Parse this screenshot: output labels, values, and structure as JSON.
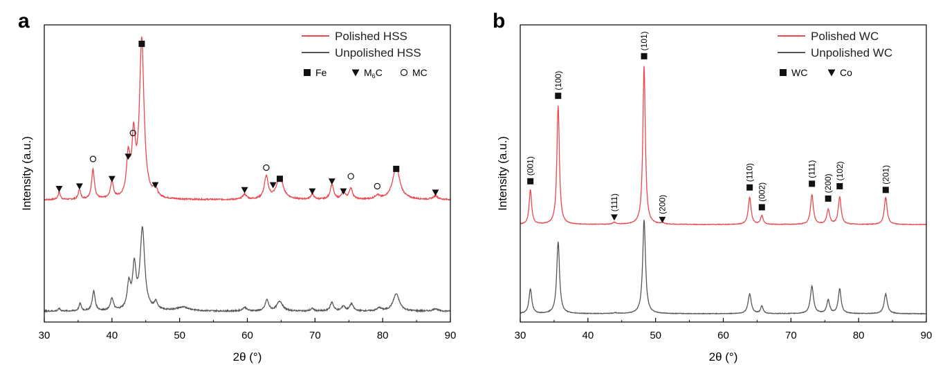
{
  "chart_data": [
    {
      "panel_label": "a",
      "type": "line",
      "xlabel": "2θ (°)",
      "ylabel": "Intensity (a.u.)",
      "xlim": [
        30,
        90
      ],
      "xticks": [
        "30",
        "40",
        "50",
        "60",
        "70",
        "80",
        "90"
      ],
      "ylim": [
        0,
        100
      ],
      "legend_position": "top-right",
      "series": [
        {
          "name": "Polished HSS",
          "color": "#e8484e",
          "offset": 45,
          "baseline": 1.0,
          "peaks": [
            [
              32.2,
              3.0,
              0.2
            ],
            [
              35.2,
              4.0,
              0.2
            ],
            [
              37.2,
              12.0,
              0.25
            ],
            [
              40.0,
              7.0,
              0.25
            ],
            [
              42.4,
              16.0,
              0.3
            ],
            [
              43.2,
              23.0,
              0.3
            ],
            [
              44.4,
              64.0,
              0.4
            ],
            [
              46.4,
              4.0,
              0.3
            ],
            [
              59.6,
              2.0,
              0.35
            ],
            [
              62.8,
              9.0,
              0.35
            ],
            [
              64.8,
              9.0,
              0.6
            ],
            [
              69.6,
              2.0,
              0.3
            ],
            [
              72.5,
              6.0,
              0.3
            ],
            [
              74.2,
              3.0,
              0.3
            ],
            [
              75.3,
              4.5,
              0.3
            ],
            [
              79.2,
              1.5,
              0.4
            ],
            [
              82.0,
              13.0,
              0.65
            ],
            [
              87.8,
              1.5,
              0.4
            ]
          ]
        },
        {
          "name": "Unpolished HSS",
          "color": "#555555",
          "offset": 0,
          "baseline": 1.0,
          "peaks": [
            [
              32.2,
              1.0,
              0.2
            ],
            [
              35.3,
              3.0,
              0.2
            ],
            [
              37.3,
              8.0,
              0.25
            ],
            [
              40.0,
              5.0,
              0.25
            ],
            [
              42.5,
              10.0,
              0.3
            ],
            [
              43.3,
              17.0,
              0.3
            ],
            [
              44.5,
              33.0,
              0.4
            ],
            [
              46.5,
              3.0,
              0.3
            ],
            [
              50.5,
              1.5,
              1.2
            ],
            [
              59.6,
              1.5,
              0.35
            ],
            [
              62.9,
              4.5,
              0.3
            ],
            [
              64.8,
              4.0,
              0.5
            ],
            [
              69.6,
              1.0,
              0.3
            ],
            [
              72.5,
              3.5,
              0.3
            ],
            [
              74.2,
              2.0,
              0.3
            ],
            [
              75.4,
              3.0,
              0.3
            ],
            [
              79.5,
              1.2,
              0.4
            ],
            [
              82.0,
              7.0,
              0.55
            ],
            [
              87.8,
              1.0,
              0.4
            ]
          ]
        }
      ],
      "annotations": [
        {
          "marker": "square",
          "x": 44.4,
          "y": 109.0
        },
        {
          "marker": "square",
          "x": 64.8,
          "y": 54.5
        },
        {
          "marker": "square",
          "x": 82.0,
          "y": 58.5
        },
        {
          "marker": "triangle",
          "x": 32.2,
          "y": 50.5
        },
        {
          "marker": "triangle",
          "x": 35.2,
          "y": 51.5
        },
        {
          "marker": "triangle",
          "x": 40.0,
          "y": 54.5
        },
        {
          "marker": "triangle",
          "x": 42.4,
          "y": 63.5
        },
        {
          "marker": "triangle",
          "x": 46.4,
          "y": 52.0
        },
        {
          "marker": "triangle",
          "x": 59.6,
          "y": 50.0
        },
        {
          "marker": "triangle",
          "x": 63.8,
          "y": 52.0
        },
        {
          "marker": "triangle",
          "x": 69.6,
          "y": 49.5
        },
        {
          "marker": "triangle",
          "x": 72.5,
          "y": 53.5
        },
        {
          "marker": "triangle",
          "x": 74.2,
          "y": 49.5
        },
        {
          "marker": "triangle",
          "x": 87.8,
          "y": 49.0
        },
        {
          "marker": "circle",
          "x": 37.2,
          "y": 62.5
        },
        {
          "marker": "circle",
          "x": 43.1,
          "y": 73.0
        },
        {
          "marker": "circle",
          "x": 62.8,
          "y": 59.0
        },
        {
          "marker": "circle",
          "x": 75.3,
          "y": 55.5
        },
        {
          "marker": "circle",
          "x": 79.2,
          "y": 51.5
        }
      ],
      "marker_legend": [
        {
          "marker": "square",
          "label": "Fe"
        },
        {
          "marker": "triangle",
          "label": "M",
          "sub": "6",
          "tail": "C"
        },
        {
          "marker": "circle",
          "label": "MC"
        }
      ]
    },
    {
      "panel_label": "b",
      "type": "line",
      "xlabel": "2θ (°)",
      "ylabel": "Intensity (a.u.)",
      "xlim": [
        30,
        90
      ],
      "xticks": [
        "30",
        "40",
        "50",
        "60",
        "70",
        "80",
        "90"
      ],
      "ylim": [
        0,
        100
      ],
      "legend_position": "top-right",
      "series": [
        {
          "name": "Polished WC",
          "color": "#e8484e",
          "offset": 36,
          "baseline": 0.0,
          "peaks": [
            [
              31.5,
              14.0,
              0.22
            ],
            [
              35.6,
              48.0,
              0.22
            ],
            [
              43.9,
              0.8,
              0.3
            ],
            [
              48.3,
              64.0,
              0.22
            ],
            [
              51.0,
              0.5,
              0.3
            ],
            [
              63.9,
              11.0,
              0.25
            ],
            [
              65.7,
              3.5,
              0.22
            ],
            [
              73.1,
              12.0,
              0.25
            ],
            [
              75.5,
              6.0,
              0.25
            ],
            [
              77.2,
              11.0,
              0.25
            ],
            [
              84.0,
              11.0,
              0.25
            ]
          ]
        },
        {
          "name": "Unpolished WC",
          "color": "#555555",
          "offset": 0,
          "baseline": 0.0,
          "peaks": [
            [
              31.5,
              10.0,
              0.25
            ],
            [
              35.6,
              29.0,
              0.25
            ],
            [
              44.0,
              0.3,
              0.3
            ],
            [
              48.3,
              38.0,
              0.25
            ],
            [
              63.9,
              8.0,
              0.28
            ],
            [
              65.7,
              3.0,
              0.22
            ],
            [
              73.1,
              11.0,
              0.28
            ],
            [
              75.5,
              5.5,
              0.25
            ],
            [
              77.2,
              10.0,
              0.25
            ],
            [
              84.0,
              8.0,
              0.28
            ]
          ]
        }
      ],
      "annotations": [
        {
          "marker": "square",
          "x": 31.5,
          "y": 53.5,
          "label": "(001)"
        },
        {
          "marker": "square",
          "x": 35.6,
          "y": 88.0,
          "label": "(100)"
        },
        {
          "marker": "triangle",
          "x": 43.9,
          "y": 39.0,
          "label": "(111)"
        },
        {
          "marker": "square",
          "x": 48.3,
          "y": 104.0,
          "label": "(101)"
        },
        {
          "marker": "triangle",
          "x": 51.0,
          "y": 38.0,
          "label": "(200)"
        },
        {
          "marker": "square",
          "x": 63.9,
          "y": 51.0,
          "label": "(110)"
        },
        {
          "marker": "square",
          "x": 65.7,
          "y": 43.0,
          "label": "(002)"
        },
        {
          "marker": "square",
          "x": 73.1,
          "y": 52.5,
          "label": "(111)"
        },
        {
          "marker": "square",
          "x": 75.5,
          "y": 46.5,
          "label": "(200)"
        },
        {
          "marker": "square",
          "x": 77.2,
          "y": 51.5,
          "label": "(102)"
        },
        {
          "marker": "square",
          "x": 84.0,
          "y": 50.0,
          "label": "(201)"
        }
      ],
      "marker_legend": [
        {
          "marker": "square",
          "label": "WC"
        },
        {
          "marker": "triangle",
          "label": "Co"
        }
      ]
    }
  ]
}
